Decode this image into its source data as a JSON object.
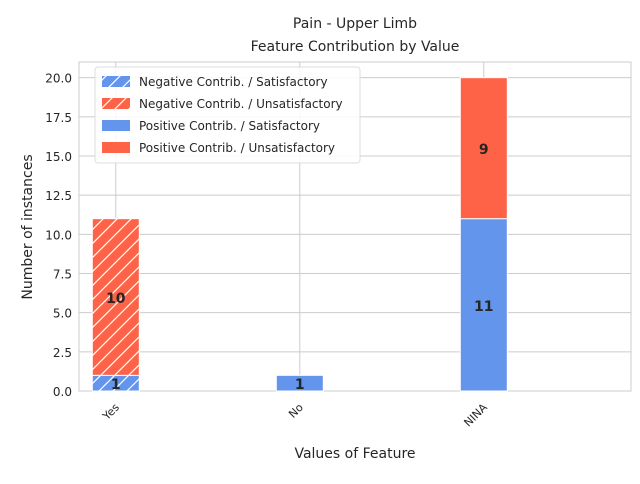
{
  "chart_data": {
    "type": "bar",
    "stacked": true,
    "title_line1": "Pain - Upper Limb",
    "title_line2": "Feature Contribution by Value",
    "xlabel": "Values of Feature",
    "ylabel": "Number of instances",
    "categories": [
      "Yes",
      "No",
      "NINA"
    ],
    "ylim": [
      0,
      21
    ],
    "yticks": [
      "0.0",
      "2.5",
      "5.0",
      "7.5",
      "10.0",
      "12.5",
      "15.0",
      "17.5",
      "20.0"
    ],
    "grid": true,
    "legend_position": "top-left",
    "series": [
      {
        "name": "Negative Contrib. / Satisfactory",
        "color": "#6495ED",
        "hatch": true,
        "values": [
          1,
          0,
          0
        ]
      },
      {
        "name": "Negative Contrib. / Unsatisfactory",
        "color": "#FF6347",
        "hatch": true,
        "values": [
          10,
          0,
          0
        ]
      },
      {
        "name": "Positive Contrib. / Satisfactory",
        "color": "#6495ED",
        "hatch": false,
        "values": [
          0,
          1,
          11
        ]
      },
      {
        "name": "Positive Contrib. / Unsatisfactory",
        "color": "#FF6347",
        "hatch": false,
        "values": [
          0,
          0,
          9
        ]
      }
    ]
  }
}
